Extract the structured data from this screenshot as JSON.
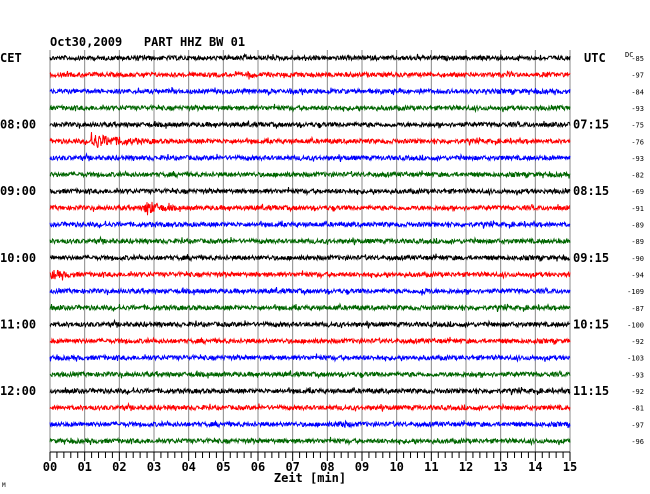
{
  "chart_data": {
    "type": "line",
    "title": "Oct30,2009   PART HHZ BW 01",
    "left_zone": "CET",
    "right_zone": "UTC",
    "dc_label": "DC",
    "xlabel": "Zeit [min]",
    "xlim": [
      0,
      15
    ],
    "x_ticks": [
      "00",
      "01",
      "02",
      "03",
      "04",
      "05",
      "06",
      "07",
      "08",
      "09",
      "10",
      "11",
      "12",
      "13",
      "14",
      "15"
    ],
    "left_hour_labels": [
      {
        "row": 4,
        "text": "08:00"
      },
      {
        "row": 8,
        "text": "09:00"
      },
      {
        "row": 12,
        "text": "10:00"
      },
      {
        "row": 16,
        "text": "11:00"
      },
      {
        "row": 20,
        "text": "12:00"
      }
    ],
    "right_hour_labels": [
      {
        "row": 4,
        "text": "07:15"
      },
      {
        "row": 8,
        "text": "08:15"
      },
      {
        "row": 12,
        "text": "09:15"
      },
      {
        "row": 16,
        "text": "10:15"
      },
      {
        "row": 20,
        "text": "11:15"
      }
    ],
    "dc_offsets": [
      "-85",
      "-97",
      "-84",
      "-93",
      "-75",
      "-76",
      "-93",
      "-82",
      "-69",
      "-91",
      "-89",
      "-89",
      "-90",
      "-94",
      "-109",
      "-87",
      "-100",
      "-92",
      "-103",
      "-93",
      "-92",
      "-81",
      "-97",
      "-96"
    ],
    "trace_colors": [
      "#000000",
      "#ff0000",
      "#0000ff",
      "#006600"
    ],
    "events": [
      {
        "row": 1,
        "start_min": 5.7,
        "end_min": 6.0,
        "amplitude": 2
      },
      {
        "row": 5,
        "start_min": 1.1,
        "end_min": 3.0,
        "amplitude": 3.5
      },
      {
        "row": 9,
        "start_min": 2.7,
        "end_min": 3.6,
        "amplitude": 4
      },
      {
        "row": 13,
        "start_min": 0.0,
        "end_min": 0.8,
        "amplitude": 2
      },
      {
        "row": 14,
        "start_min": 10.7,
        "end_min": 11.0,
        "amplitude": 2
      },
      {
        "row": 22,
        "start_min": 8.3,
        "end_min": 8.9,
        "amplitude": 1.8
      }
    ],
    "footer_mark": "M"
  }
}
